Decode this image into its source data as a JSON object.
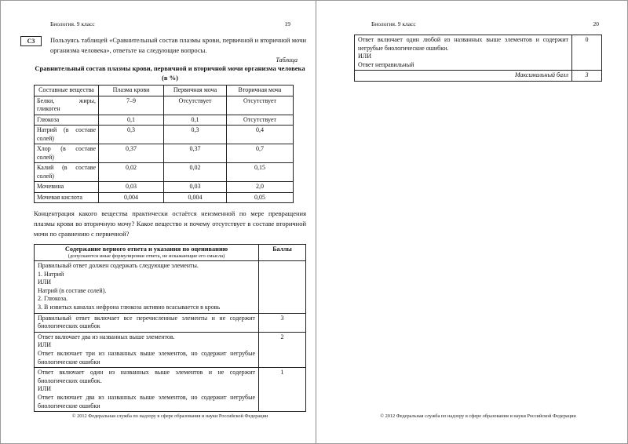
{
  "page_left": {
    "header": {
      "title": "Биология. 9 класс",
      "page_number": "19"
    },
    "question_label": "С3",
    "question_text": "Пользуясь таблицей «Сравнительный состав плазмы крови, первичной и вторичной мочи организма человека», ответьте на следующие вопросы.",
    "table_caption": "Таблица",
    "table_title": "Сравнительный состав плазмы крови, первичной и вторичной мочи организма человека (в %)",
    "data_table": {
      "headers": [
        "Составные вещества",
        "Плазма крови",
        "Первичная моча",
        "Вторичная моча"
      ],
      "rows": [
        [
          "Белки, жиры, гликоген",
          "7–9",
          "Отсутствует",
          "Отсутствует"
        ],
        [
          "Глюкоза",
          "0,1",
          "0,1",
          "Отсутствует"
        ],
        [
          "Натрий (в составе солей)",
          "0,3",
          "0,3",
          "0,4"
        ],
        [
          "Хлор (в составе солей)",
          "0,37",
          "0,37",
          "0,7"
        ],
        [
          "Калий (в составе солей)",
          "0,02",
          "0,02",
          "0,15"
        ],
        [
          "Мочевина",
          "0,03",
          "0,03",
          "2,0"
        ],
        [
          "Мочевая кислота",
          "0,004",
          "0,004",
          "0,05"
        ]
      ]
    },
    "question2_text": "Концентрация какого вещества практически остаётся неизменной по мере превращения плазмы крови во вторичную мочу? Какое вещество и почему отсутствует в составе вторичной мочи по сравнению с первичной?",
    "scoring_table": {
      "header_title": "Содержание верного ответа и указания по оцениванию",
      "header_subtitle": "(допускаются иные формулировки ответа, не искажающие его смысла)",
      "score_header": "Баллы",
      "rows": [
        {
          "paragraphs": [
            "Правильный ответ должен содержать следующие элементы.",
            "1. Натрий",
            "ИЛИ",
            "Натрий (в составе солей).",
            "2. Глюкоза.",
            "3. В извитых каналах нефрона глюкоза активно всасывается в кровь"
          ],
          "score": ""
        },
        {
          "paragraphs": [
            "Правильный ответ включает все перечисленные элементы и не содержит биологических ошибок"
          ],
          "score": "3"
        },
        {
          "paragraphs": [
            "Ответ включает два из названных выше элементов.",
            "ИЛИ",
            "Ответ включает три из названных выше элементов, но содержит негрубые биологические ошибки"
          ],
          "score": "2"
        },
        {
          "paragraphs": [
            "Ответ включает один из названных выше элементов и не содержит биологических ошибок.",
            "ИЛИ",
            "Ответ включает два из названных выше элементов, но содержит негрубые биологические ошибки"
          ],
          "score": "1"
        }
      ]
    },
    "footer": "© 2012 Федеральная служба по надзору в сфере образования и науки Российской Федерации"
  },
  "page_right": {
    "header": {
      "title": "Биология. 9 класс",
      "page_number": "20"
    },
    "scoring_table_cont": {
      "rows": [
        {
          "paragraphs": [
            "Ответ включает один любой из названных выше элементов и содержит негрубые биологические ошибки.",
            "ИЛИ",
            "Ответ неправильный"
          ],
          "score": "0"
        }
      ],
      "max_label": "Максимальный балл",
      "max_score": "3"
    },
    "footer": "© 2012 Федеральная служба по надзору в сфере образования и науки Российской Федерации"
  }
}
